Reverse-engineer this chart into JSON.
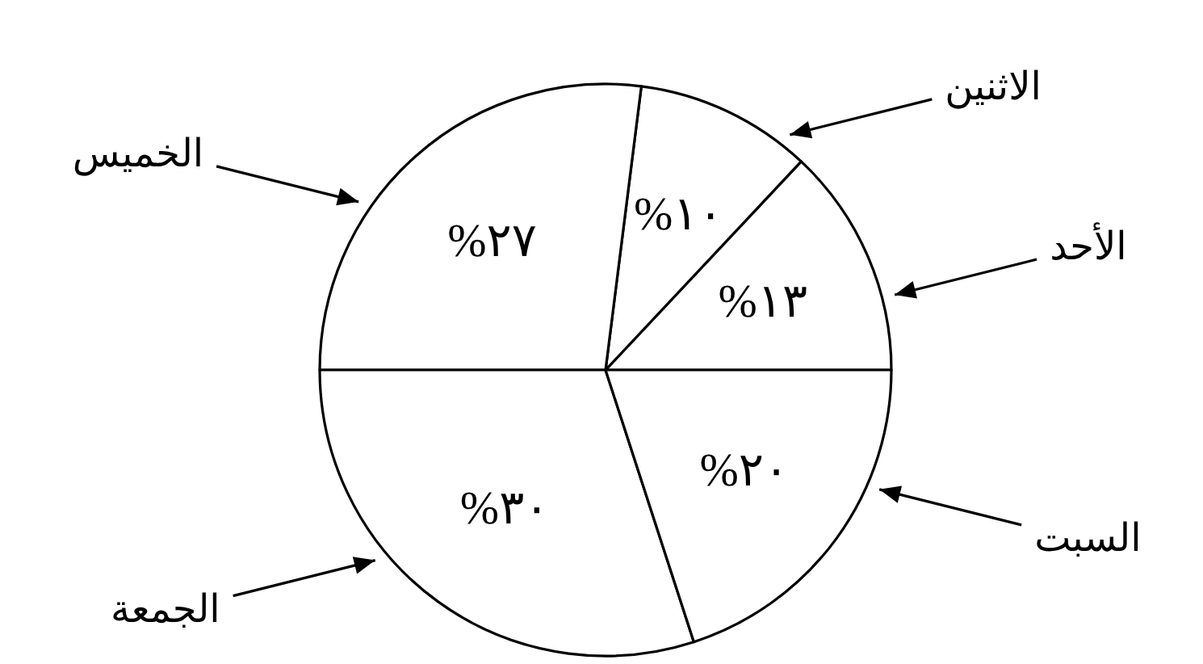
{
  "chart_data": {
    "type": "pie",
    "categories": [
      "الأحد",
      "الاثنين",
      "الخميس",
      "الجمعة",
      "السبت"
    ],
    "values": [
      13,
      10,
      27,
      30,
      20
    ],
    "colors": [
      "#ffffff",
      "#ffffff",
      "#ffffff",
      "#ffffff",
      "#ffffff"
    ],
    "value_labels": [
      "%١٣",
      "%١٠",
      "%٢٧",
      "%٣٠",
      "%٢٠"
    ]
  }
}
